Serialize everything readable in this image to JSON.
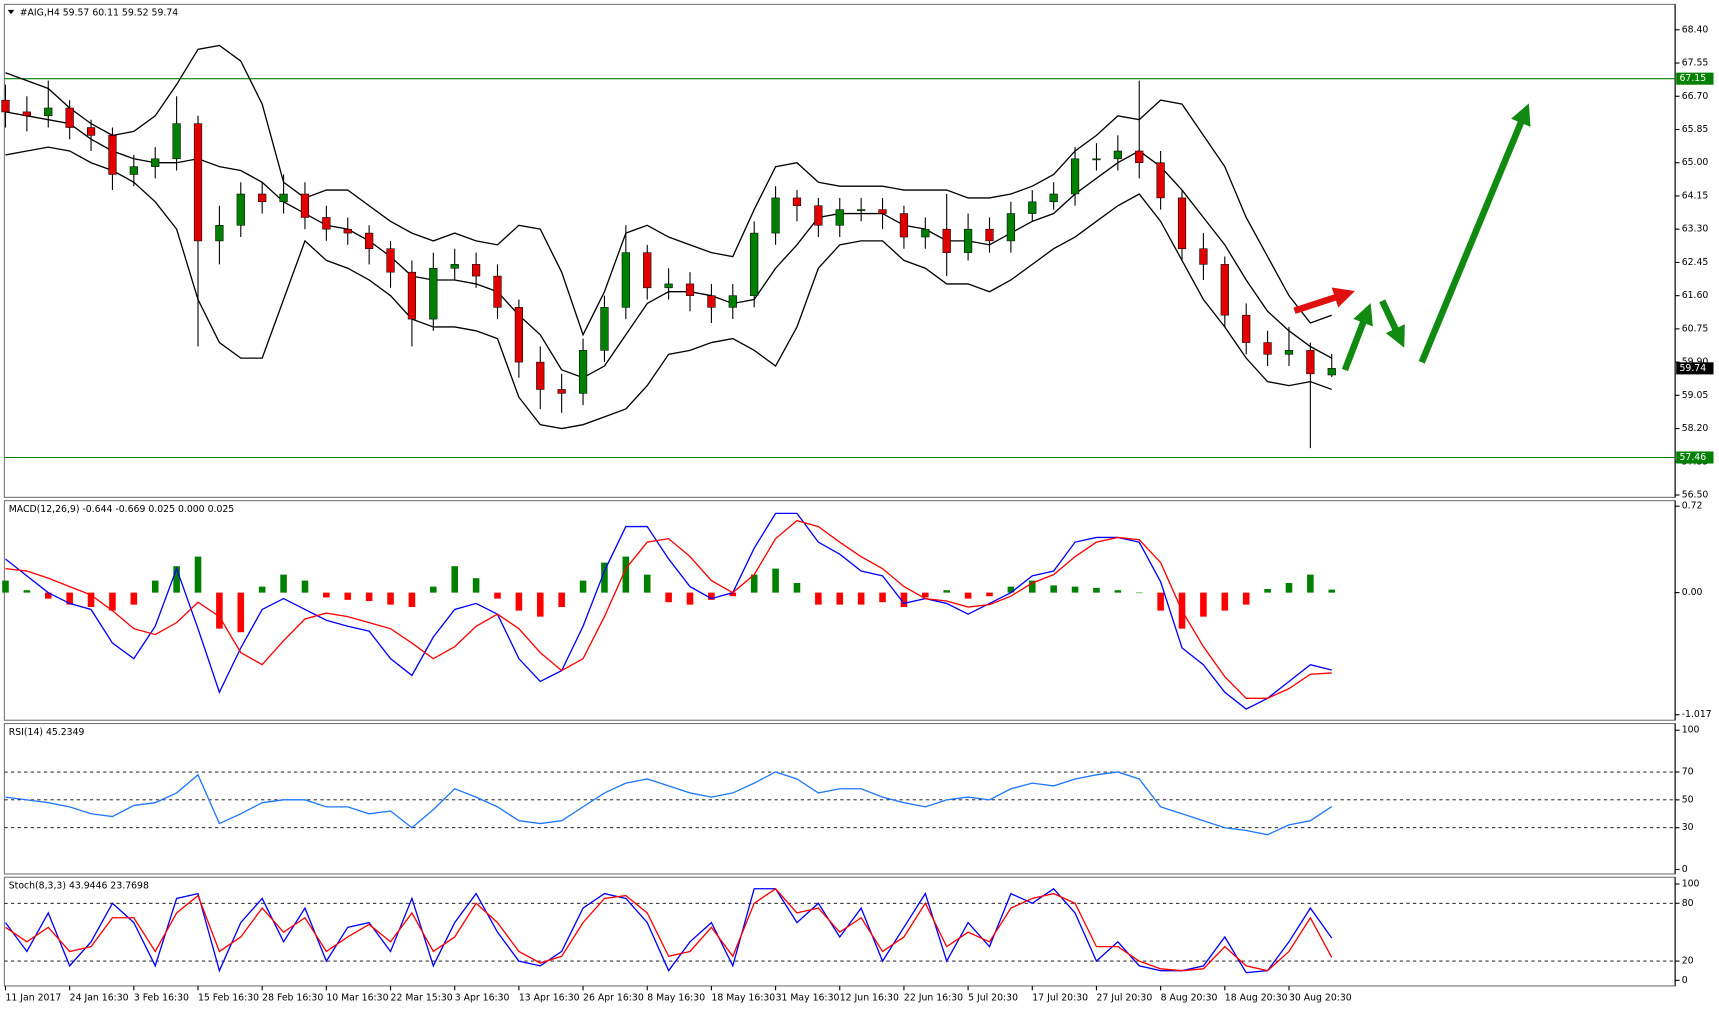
{
  "chart_data": [
    {
      "type": "candlestick",
      "title": "#AIG,H4  59.57 60.11 59.52 59.74",
      "open": [
        66.6,
        66.3,
        66.2,
        66.4,
        65.9,
        65.7,
        64.7,
        64.9,
        65.1,
        66.0,
        63.0,
        63.4,
        64.2,
        64.0,
        64.2,
        63.6,
        63.3,
        63.2,
        62.8,
        62.2,
        61.0,
        62.3,
        62.4,
        62.1,
        61.3,
        59.9,
        59.2,
        59.1,
        60.2,
        61.3,
        62.7,
        61.8,
        61.9,
        61.6,
        61.3,
        61.6,
        63.2,
        64.1,
        63.9,
        63.4,
        63.8,
        63.8,
        63.7,
        63.1,
        63.3,
        62.7,
        63.3,
        63.0,
        63.7,
        64.0,
        64.2,
        65.1,
        65.1,
        65.3,
        65.0,
        64.1,
        62.8,
        62.4,
        61.1,
        60.4,
        60.1,
        60.2,
        59.57
      ],
      "high": [
        67.0,
        66.7,
        67.1,
        66.6,
        66.1,
        65.9,
        65.2,
        65.4,
        66.7,
        66.2,
        63.9,
        64.5,
        64.5,
        64.7,
        64.5,
        63.9,
        63.6,
        63.4,
        63.0,
        62.5,
        62.7,
        62.8,
        62.7,
        62.4,
        61.5,
        60.3,
        59.6,
        60.5,
        61.6,
        63.4,
        62.9,
        62.3,
        62.2,
        61.9,
        61.9,
        63.5,
        64.4,
        64.3,
        64.1,
        64.1,
        64.1,
        64.1,
        63.9,
        63.6,
        64.2,
        63.7,
        63.6,
        64.0,
        64.3,
        64.5,
        65.4,
        65.5,
        65.7,
        67.1,
        65.3,
        64.3,
        63.2,
        62.6,
        61.4,
        60.7,
        60.8,
        60.4,
        60.11
      ],
      "low": [
        65.9,
        65.8,
        65.9,
        65.6,
        65.3,
        64.3,
        64.4,
        64.6,
        64.8,
        60.3,
        62.4,
        63.1,
        63.7,
        63.7,
        63.3,
        63.0,
        62.9,
        62.4,
        61.8,
        60.3,
        60.7,
        62.0,
        61.8,
        61.0,
        59.5,
        58.7,
        58.6,
        58.8,
        59.9,
        61.0,
        61.5,
        61.5,
        61.2,
        60.9,
        61.0,
        61.3,
        62.9,
        63.5,
        63.1,
        63.1,
        63.5,
        63.3,
        62.8,
        62.8,
        62.1,
        62.5,
        62.7,
        62.7,
        63.5,
        63.8,
        63.9,
        64.8,
        64.8,
        64.6,
        63.8,
        62.5,
        62.0,
        60.8,
        60.1,
        59.8,
        59.8,
        57.7,
        59.52
      ],
      "close": [
        66.3,
        66.2,
        66.4,
        65.9,
        65.7,
        64.7,
        64.9,
        65.1,
        66.0,
        63.0,
        63.4,
        64.2,
        64.0,
        64.2,
        63.6,
        63.3,
        63.2,
        62.8,
        62.2,
        61.0,
        62.3,
        62.4,
        62.1,
        61.3,
        59.9,
        59.2,
        59.1,
        60.2,
        61.3,
        62.7,
        61.8,
        61.9,
        61.6,
        61.3,
        61.6,
        63.2,
        64.1,
        63.9,
        63.4,
        63.8,
        63.8,
        63.7,
        63.1,
        63.3,
        62.7,
        63.3,
        63.0,
        63.7,
        64.0,
        64.2,
        65.1,
        65.1,
        65.3,
        65.0,
        64.1,
        62.8,
        62.4,
        61.1,
        60.4,
        60.1,
        60.2,
        59.6,
        59.74
      ],
      "up_color": "#008000",
      "down_color": "#e00000",
      "wick_color": "#000000",
      "series": [
        {
          "color": "#000000",
          "values": [
            67.3,
            67.1,
            66.9,
            66.4,
            66.0,
            65.7,
            65.8,
            66.2,
            67.0,
            67.9,
            68.0,
            67.6,
            66.5,
            64.5,
            64.1,
            64.3,
            64.3,
            63.9,
            63.5,
            63.2,
            63.0,
            63.2,
            63.0,
            62.9,
            63.4,
            63.3,
            62.2,
            60.6,
            61.7,
            63.2,
            63.4,
            63.1,
            62.9,
            62.7,
            62.6,
            63.8,
            64.9,
            65.0,
            64.5,
            64.4,
            64.4,
            64.4,
            64.3,
            64.3,
            64.3,
            64.1,
            64.1,
            64.2,
            64.4,
            64.7,
            65.3,
            65.7,
            66.2,
            66.1,
            66.6,
            66.5,
            65.7,
            64.9,
            63.6,
            62.6,
            61.6,
            60.9,
            61.1
          ]
        },
        {
          "color": "#000000",
          "values": [
            66.3,
            66.2,
            66.1,
            66.0,
            65.6,
            65.3,
            65.1,
            65.0,
            65.0,
            65.1,
            64.9,
            64.8,
            64.5,
            64.0,
            63.7,
            63.4,
            63.3,
            63.0,
            62.6,
            62.1,
            62.0,
            62.0,
            61.9,
            61.7,
            61.1,
            60.6,
            59.7,
            59.5,
            59.8,
            60.6,
            61.4,
            61.7,
            61.7,
            61.6,
            61.4,
            61.5,
            62.3,
            62.9,
            63.6,
            63.7,
            63.7,
            63.7,
            63.4,
            63.3,
            63.0,
            63.0,
            62.9,
            63.2,
            63.5,
            63.7,
            64.2,
            64.6,
            65.0,
            65.3,
            64.9,
            64.3,
            63.6,
            62.9,
            62.0,
            61.2,
            60.7,
            60.3,
            60.0
          ]
        },
        {
          "color": "#000000",
          "values": [
            65.2,
            65.3,
            65.4,
            65.3,
            65.0,
            64.8,
            64.5,
            64.0,
            63.3,
            61.5,
            60.4,
            60.0,
            60.0,
            61.5,
            63.0,
            62.5,
            62.3,
            62.0,
            61.6,
            61.0,
            60.8,
            60.8,
            60.7,
            60.5,
            59.0,
            58.3,
            58.2,
            58.3,
            58.5,
            58.7,
            59.3,
            60.1,
            60.2,
            60.4,
            60.5,
            60.2,
            59.8,
            60.8,
            62.3,
            62.9,
            63.0,
            63.0,
            62.5,
            62.3,
            61.9,
            61.9,
            61.7,
            62.0,
            62.4,
            62.8,
            63.1,
            63.5,
            63.9,
            64.2,
            63.5,
            62.5,
            61.5,
            60.8,
            60.0,
            59.4,
            59.3,
            59.4,
            59.2
          ]
        }
      ],
      "levels": [
        {
          "value": 67.15,
          "color": "#008000"
        },
        {
          "value": 57.46,
          "color": "#008000"
        }
      ],
      "ylim": [
        56.44,
        69.05
      ],
      "yticks": [
        {
          "value": 68.4,
          "label": "68.40"
        },
        {
          "value": 67.55,
          "label": "67.55"
        },
        {
          "value": 66.7,
          "label": "66.70"
        },
        {
          "value": 65.85,
          "label": "65.85"
        },
        {
          "value": 65,
          "label": "65.00"
        },
        {
          "value": 64.15,
          "label": "64.15"
        },
        {
          "value": 63.3,
          "label": "63.30"
        },
        {
          "value": 62.45,
          "label": "62.45"
        },
        {
          "value": 61.6,
          "label": "61.60"
        },
        {
          "value": 60.75,
          "label": "60.75"
        },
        {
          "value": 59.9,
          "label": "59.90"
        },
        {
          "value": 59.05,
          "label": "59.05"
        },
        {
          "value": 58.2,
          "label": "58.20"
        },
        {
          "value": 57.35,
          "label": "57.35"
        },
        {
          "value": 56.5,
          "label": "56.50"
        }
      ]
    },
    {
      "type": "macd",
      "title": "MACD(12,26,9) -0.644 -0.669 0.025 0.000 0.025",
      "histogram": [
        0.1,
        0.02,
        -0.05,
        -0.1,
        -0.12,
        -0.15,
        -0.1,
        0.1,
        0.22,
        0.3,
        -0.3,
        -0.33,
        0.05,
        0.15,
        0.1,
        -0.04,
        -0.06,
        -0.07,
        -0.1,
        -0.12,
        0.05,
        0.22,
        0.12,
        -0.05,
        -0.15,
        -0.2,
        -0.12,
        0.1,
        0.25,
        0.3,
        0.15,
        -0.08,
        -0.1,
        -0.06,
        -0.03,
        0.15,
        0.2,
        0.08,
        -0.1,
        -0.1,
        -0.1,
        -0.08,
        -0.12,
        -0.04,
        0.02,
        -0.05,
        -0.03,
        0.05,
        0.1,
        0.06,
        0.05,
        0.04,
        0.02,
        0,
        -0.15,
        -0.3,
        -0.2,
        -0.15,
        -0.1,
        0.03,
        0.08,
        0.15,
        0.025
      ],
      "up_color": "#008000",
      "down_color": "#ff0000",
      "series": [
        {
          "color": "#0000ff",
          "values": [
            0.28,
            0.14,
            0,
            -0.09,
            -0.14,
            -0.42,
            -0.55,
            -0.28,
            0.2,
            -0.3,
            -0.83,
            -0.46,
            -0.14,
            -0.05,
            -0.14,
            -0.23,
            -0.28,
            -0.32,
            -0.55,
            -0.69,
            -0.37,
            -0.14,
            -0.09,
            -0.18,
            -0.55,
            -0.74,
            -0.65,
            -0.28,
            0.18,
            0.55,
            0.55,
            0.28,
            0.05,
            -0.05,
            0,
            0.37,
            0.66,
            0.66,
            0.42,
            0.32,
            0.18,
            0.14,
            -0.09,
            -0.05,
            -0.09,
            -0.18,
            -0.09,
            0,
            0.14,
            0.18,
            0.42,
            0.46,
            0.46,
            0.42,
            0.09,
            -0.46,
            -0.6,
            -0.83,
            -0.97,
            -0.88,
            -0.74,
            -0.6,
            -0.644
          ]
        },
        {
          "color": "#ff0000",
          "values": [
            0.2,
            0.18,
            0.12,
            0.05,
            -0.02,
            -0.15,
            -0.3,
            -0.35,
            -0.25,
            -0.08,
            -0.2,
            -0.5,
            -0.6,
            -0.4,
            -0.22,
            -0.17,
            -0.2,
            -0.25,
            -0.3,
            -0.42,
            -0.55,
            -0.45,
            -0.28,
            -0.18,
            -0.3,
            -0.5,
            -0.65,
            -0.55,
            -0.2,
            0.2,
            0.42,
            0.45,
            0.3,
            0.1,
            0,
            0.15,
            0.45,
            0.6,
            0.55,
            0.42,
            0.3,
            0.2,
            0.05,
            -0.05,
            -0.07,
            -0.12,
            -0.1,
            -0.03,
            0.08,
            0.15,
            0.3,
            0.42,
            0.46,
            0.44,
            0.25,
            -0.15,
            -0.45,
            -0.7,
            -0.88,
            -0.88,
            -0.8,
            -0.68,
            -0.669
          ]
        }
      ],
      "ylim": [
        -1.063,
        0.766
      ],
      "yticks": [
        0.72,
        {
          "value": 0,
          "label": "0.00"
        },
        -1.017
      ]
    },
    {
      "type": "line",
      "title": "RSI(14) 45.2349",
      "series": [
        {
          "color": "#1e78ff",
          "values": [
            52,
            50,
            48,
            45,
            40,
            38,
            46,
            48,
            55,
            68,
            33,
            40,
            48,
            50,
            50,
            45,
            45,
            40,
            42,
            30,
            43,
            58,
            52,
            45,
            35,
            33,
            35,
            45,
            55,
            62,
            65,
            60,
            55,
            52,
            55,
            62,
            70,
            65,
            55,
            58,
            58,
            52,
            48,
            45,
            50,
            52,
            50,
            58,
            62,
            60,
            65,
            68,
            70,
            65,
            45,
            40,
            35,
            30,
            28,
            25,
            32,
            35,
            45.2349
          ]
        }
      ],
      "levels": [
        70,
        50,
        30
      ],
      "ylim": [
        -3.2,
        104.8
      ],
      "yticks": [
        0,
        30,
        50,
        70,
        100
      ]
    },
    {
      "type": "line",
      "title": "Stoch(8,3,3) 43.9446 23.7698",
      "series": [
        {
          "color": "#0000ff",
          "values": [
            60,
            30,
            70,
            15,
            40,
            80,
            60,
            15,
            85,
            90,
            10,
            60,
            85,
            40,
            75,
            20,
            55,
            60,
            30,
            85,
            15,
            60,
            90,
            50,
            20,
            15,
            30,
            75,
            90,
            85,
            60,
            10,
            40,
            60,
            15,
            95,
            95,
            60,
            80,
            45,
            75,
            20,
            55,
            90,
            20,
            60,
            35,
            90,
            80,
            95,
            70,
            20,
            40,
            15,
            10,
            10,
            15,
            45,
            8,
            10,
            40,
            75,
            43.9446
          ]
        },
        {
          "color": "#ff0000",
          "values": [
            55,
            40,
            55,
            30,
            35,
            65,
            65,
            30,
            70,
            88,
            30,
            45,
            75,
            50,
            65,
            30,
            45,
            58,
            40,
            70,
            30,
            45,
            80,
            60,
            30,
            18,
            25,
            60,
            85,
            88,
            70,
            25,
            30,
            55,
            25,
            80,
            95,
            70,
            75,
            50,
            65,
            30,
            45,
            80,
            35,
            50,
            40,
            75,
            85,
            90,
            80,
            35,
            35,
            20,
            12,
            10,
            12,
            35,
            15,
            10,
            30,
            65,
            23.7698
          ]
        }
      ],
      "levels": [
        80,
        20
      ],
      "ylim": [
        -5.8,
        107
      ],
      "yticks": [
        0,
        20,
        80,
        100
      ],
      "categories": [
        "11 Jan 2017",
        null,
        null,
        "24 Jan 16:30",
        null,
        null,
        "3 Feb 16:30",
        null,
        null,
        "15 Feb 16:30",
        null,
        null,
        "28 Feb 16:30",
        null,
        null,
        "10 Mar 16:30",
        null,
        null,
        "22 Mar 15:30",
        null,
        null,
        "3 Apr 16:30",
        null,
        null,
        "13 Apr 16:30",
        null,
        null,
        "26 Apr 16:30",
        null,
        null,
        "8 May 16:30",
        null,
        null,
        "18 May 16:30",
        null,
        null,
        "31 May 16:30",
        null,
        null,
        "12 Jun 16:30",
        null,
        null,
        "22 Jun 16:30",
        null,
        null,
        "5 Jul 20:30",
        null,
        null,
        "17 Jul 20:30",
        null,
        null,
        "27 Jul 20:30",
        null,
        null,
        "8 Aug 20:30",
        null,
        null,
        "18 Aug 20:30",
        null,
        null,
        "30 Aug 20:30",
        null,
        null
      ]
    }
  ]
}
